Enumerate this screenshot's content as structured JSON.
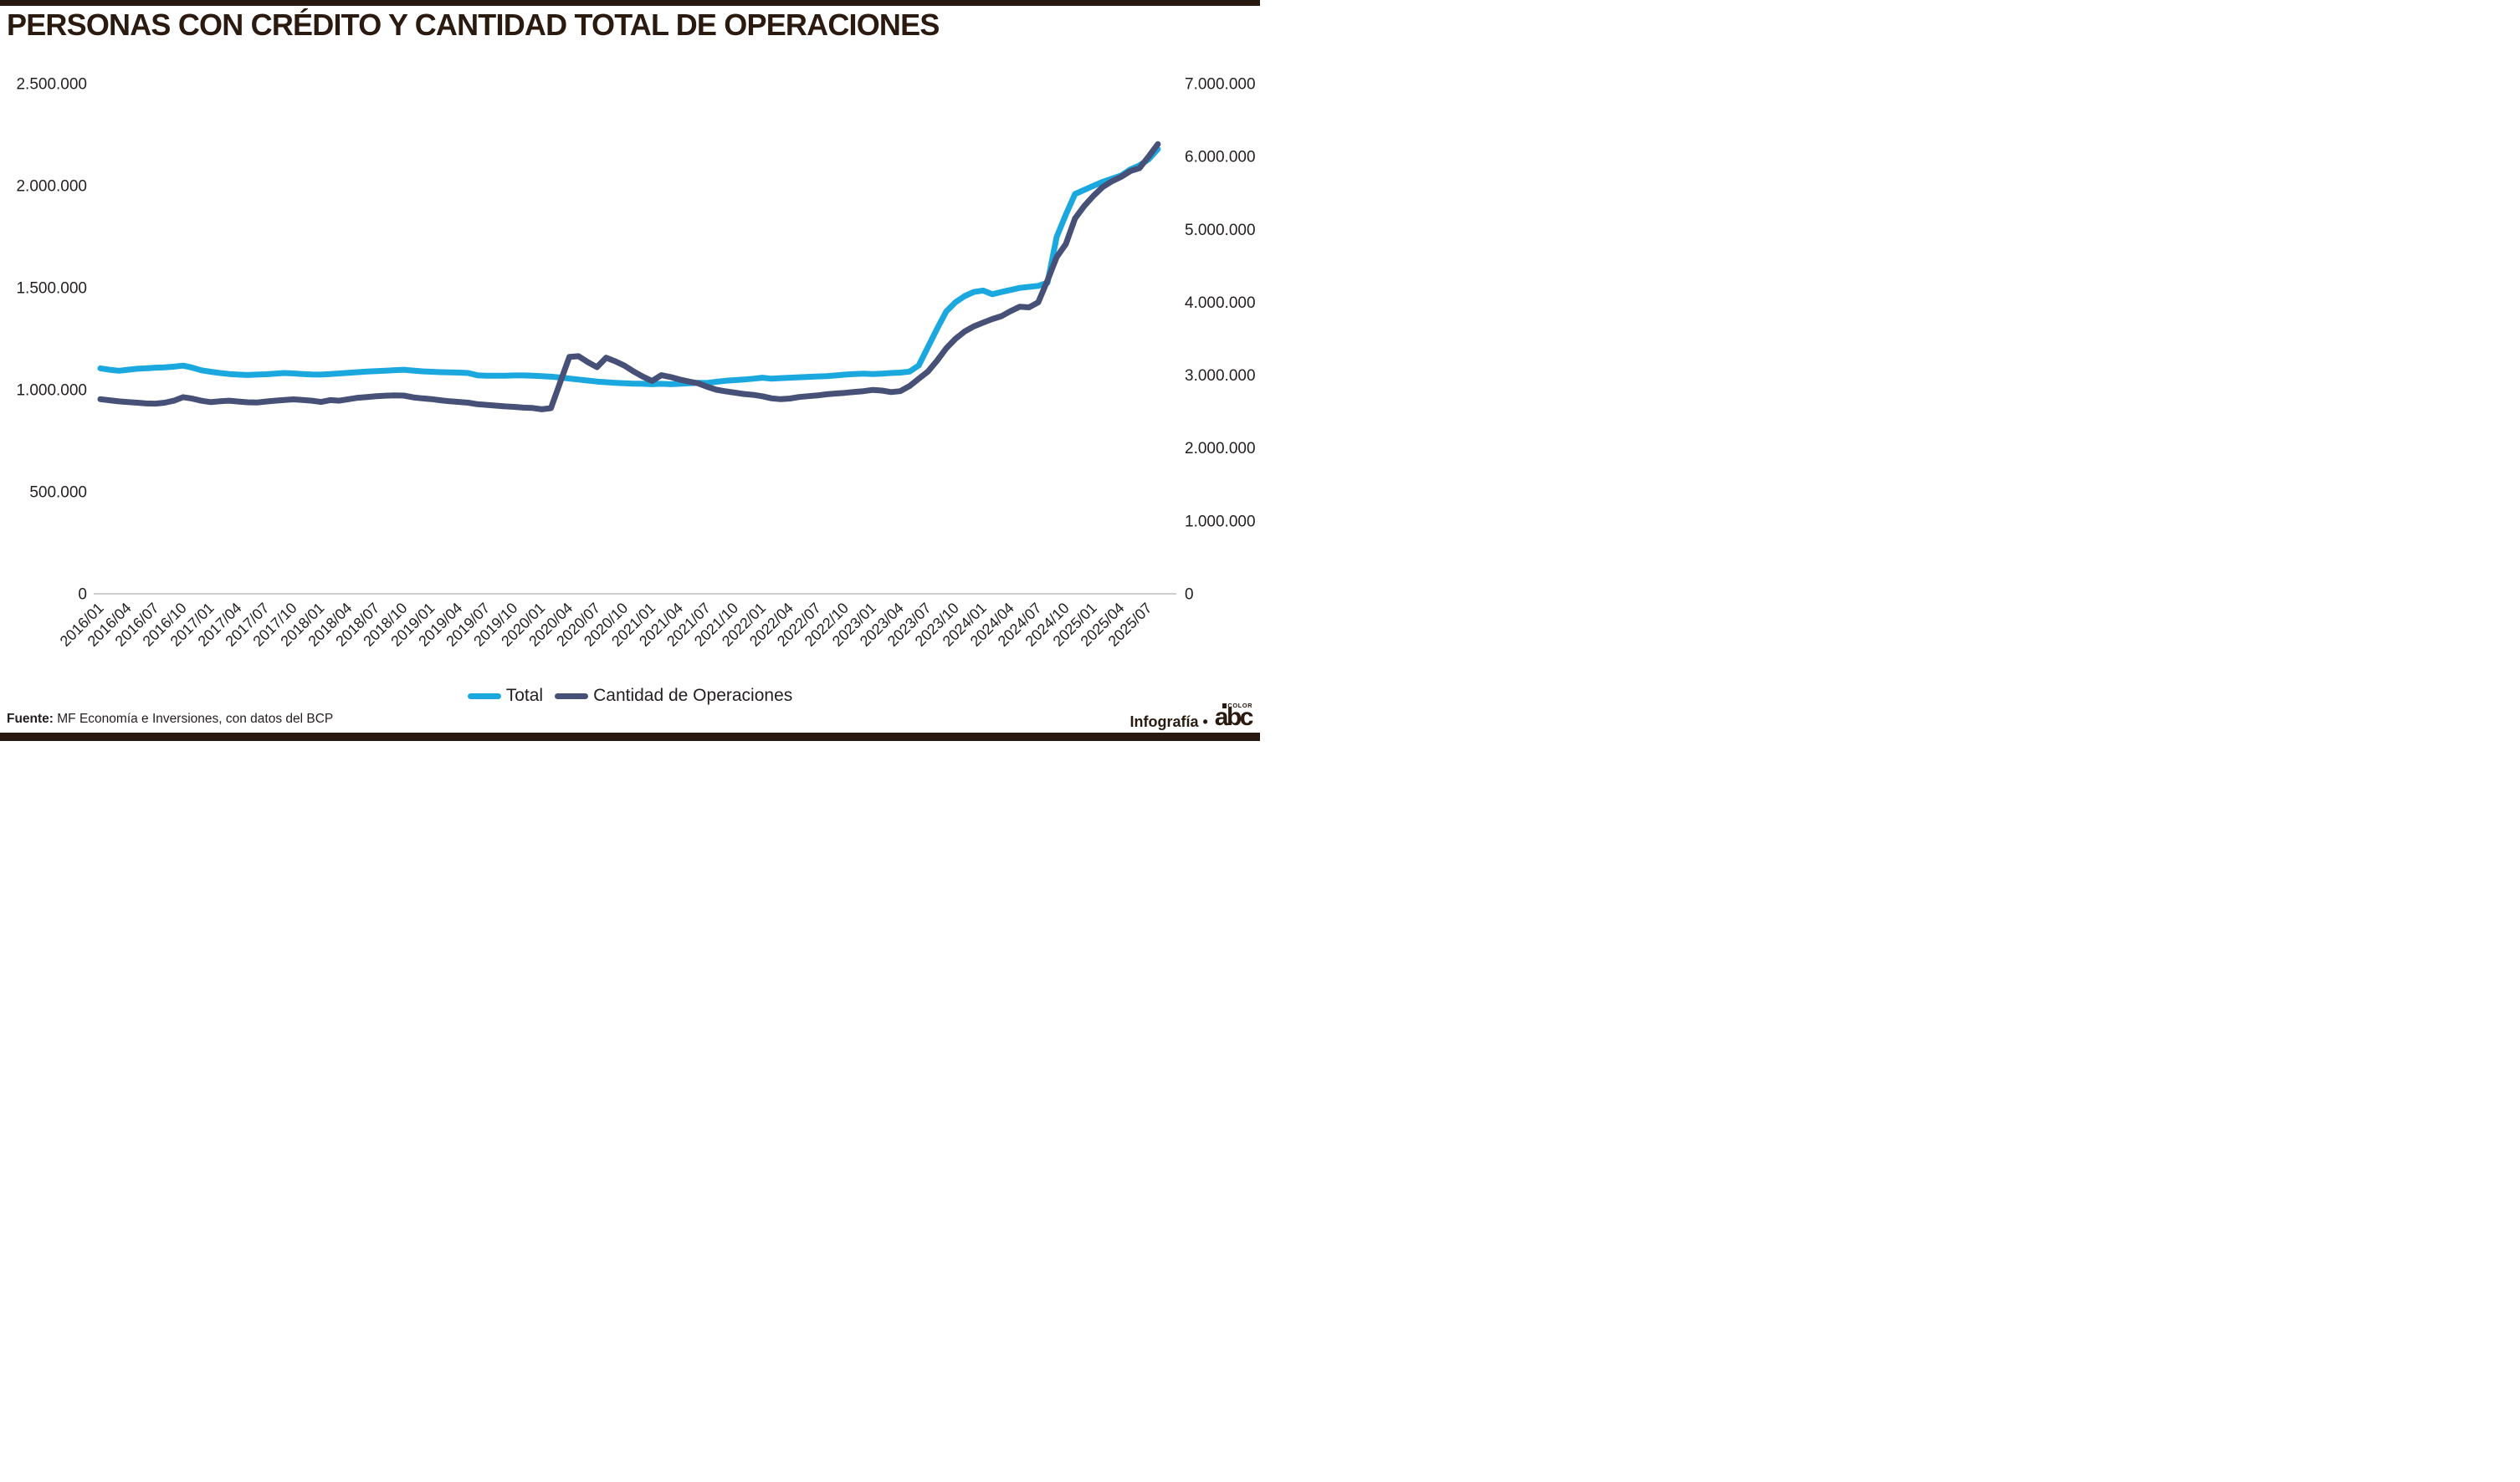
{
  "page": {
    "title": "PERSONAS CON CRÉDITO Y CANTIDAD TOTAL DE OPERACIONES",
    "footer": {
      "source_label": "Fuente:",
      "source_text": " MF Economía e Inversiones, con datos del BCP",
      "credit": "Infografía •",
      "logo_text": "abc",
      "logo_small": "COLOR"
    }
  },
  "colors": {
    "accent_bar": "#27190f",
    "title_text": "#2a1a10",
    "axis_line": "#cfcfcf",
    "tick_text": "#231f20",
    "total_line": "#1ba8df",
    "operations_line": "#475077"
  },
  "chart_data": {
    "type": "line",
    "title": "PERSONAS CON CRÉDITO Y CANTIDAD TOTAL DE OPERACIONES",
    "x_interval": "monthly",
    "x_start": "2016/01",
    "x_end": "2025/08",
    "grid": false,
    "legend_position": "bottom",
    "x_tick_labels": [
      "2016/01",
      "2016/04",
      "2016/07",
      "2016/10",
      "2017/01",
      "2017/04",
      "2017/07",
      "2017/10",
      "2018/01",
      "2018/04",
      "2018/07",
      "2018/10",
      "2019/01",
      "2019/04",
      "2019/07",
      "2019/10",
      "2020/01",
      "2020/04",
      "2020/07",
      "2020/10",
      "2021/01",
      "2021/04",
      "2021/07",
      "2021/10",
      "2022/01",
      "2022/04",
      "2022/07",
      "2022/10",
      "2023/01",
      "2023/04",
      "2023/07",
      "2023/10",
      "2024/01",
      "2024/04",
      "2024/07",
      "2024/10",
      "2025/01",
      "2025/04",
      "2025/07"
    ],
    "left_axis": {
      "min": 0,
      "max": 2500000,
      "ticks": [
        "0",
        "500.000",
        "1.000.000",
        "1.500.000",
        "2.000.000",
        "2.500.000"
      ]
    },
    "right_axis": {
      "min": 0,
      "max": 7000000,
      "ticks": [
        "0",
        "1.000.000",
        "2.000.000",
        "3.000.000",
        "4.000.000",
        "5.000.000",
        "6.000.000",
        "7.000.000"
      ]
    },
    "series": [
      {
        "name": "Total",
        "axis": "left",
        "color": "#1ba8df",
        "values": [
          1105000,
          1098000,
          1093000,
          1098000,
          1103000,
          1105000,
          1108000,
          1110000,
          1113000,
          1118000,
          1108000,
          1095000,
          1088000,
          1082000,
          1077000,
          1074000,
          1072000,
          1074000,
          1076000,
          1079000,
          1082000,
          1080000,
          1077000,
          1075000,
          1074000,
          1077000,
          1080000,
          1083000,
          1086000,
          1089000,
          1091000,
          1093000,
          1096000,
          1098000,
          1094000,
          1090000,
          1088000,
          1086000,
          1085000,
          1084000,
          1082000,
          1071000,
          1069000,
          1069000,
          1069000,
          1070000,
          1070000,
          1069000,
          1067000,
          1064000,
          1060000,
          1055000,
          1050000,
          1045000,
          1040000,
          1037000,
          1034000,
          1032000,
          1030000,
          1029000,
          1027000,
          1029000,
          1027000,
          1029000,
          1032000,
          1034000,
          1033000,
          1039000,
          1044000,
          1047000,
          1050000,
          1054000,
          1059000,
          1054000,
          1057000,
          1059000,
          1061000,
          1063000,
          1065000,
          1067000,
          1070000,
          1074000,
          1077000,
          1079000,
          1077000,
          1079000,
          1082000,
          1084000,
          1089000,
          1119000,
          1209000,
          1299000,
          1384000,
          1429000,
          1459000,
          1479000,
          1486000,
          1468000,
          1479000,
          1489000,
          1499000,
          1504000,
          1509000,
          1524000,
          1749000,
          1859000,
          1959000,
          1979000,
          1999000,
          2019000,
          2034000,
          2049000,
          2079000,
          2099000,
          2129000,
          2179000
        ]
      },
      {
        "name": "Cantidad de Operaciones",
        "axis": "right",
        "color": "#475077",
        "values": [
          2670000,
          2655000,
          2640000,
          2630000,
          2622000,
          2612000,
          2610000,
          2622000,
          2650000,
          2698000,
          2678000,
          2648000,
          2630000,
          2642000,
          2650000,
          2638000,
          2628000,
          2625000,
          2638000,
          2650000,
          2660000,
          2668000,
          2660000,
          2650000,
          2632000,
          2658000,
          2650000,
          2670000,
          2690000,
          2700000,
          2710000,
          2718000,
          2722000,
          2720000,
          2695000,
          2682000,
          2672000,
          2655000,
          2642000,
          2632000,
          2622000,
          2602000,
          2592000,
          2582000,
          2572000,
          2565000,
          2555000,
          2550000,
          2532000,
          2548000,
          2900000,
          3250000,
          3260000,
          3180000,
          3110000,
          3240000,
          3190000,
          3130000,
          3050000,
          2980000,
          2920000,
          3000000,
          2975000,
          2940000,
          2912000,
          2888000,
          2840000,
          2800000,
          2778000,
          2760000,
          2742000,
          2730000,
          2710000,
          2682000,
          2670000,
          2680000,
          2700000,
          2712000,
          2722000,
          2738000,
          2748000,
          2758000,
          2770000,
          2780000,
          2798000,
          2788000,
          2768000,
          2780000,
          2850000,
          2950000,
          3050000,
          3200000,
          3370000,
          3500000,
          3600000,
          3670000,
          3720000,
          3770000,
          3810000,
          3880000,
          3940000,
          3930000,
          4000000,
          4300000,
          4620000,
          4800000,
          5150000,
          5320000,
          5460000,
          5580000,
          5660000,
          5720000,
          5800000,
          5840000,
          6000000,
          6170000
        ]
      }
    ]
  }
}
